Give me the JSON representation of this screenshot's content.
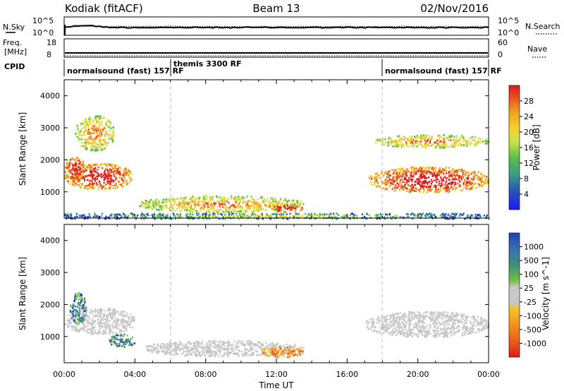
{
  "header": {
    "radar": "Kodiak (fitACF)",
    "beam": "Beam 13",
    "date": "02/Nov/2016"
  },
  "noise_panel": {
    "left_label": "N.Sky",
    "right_label": "N.Search",
    "left_ticks": [
      "10^5",
      "10^0"
    ],
    "right_ticks": [
      "10^5",
      "10^0"
    ]
  },
  "freq_panel": {
    "left_label_1": "Freq.",
    "left_label_2": "[MHz]",
    "right_label": "Nave",
    "left_ticks": [
      "18",
      "8"
    ],
    "right_ticks": [
      "60",
      "0"
    ]
  },
  "cpid_panel": {
    "label": "CPID",
    "segments": [
      {
        "label": "normalsound (fast) 157 RF",
        "start_h": 0,
        "end_h": 6
      },
      {
        "label": "themis 3300 RF",
        "start_h": 6,
        "end_h": 18
      },
      {
        "label": "normalsound (fast) 157 RF",
        "start_h": 18,
        "end_h": 24
      }
    ]
  },
  "time_axis": {
    "label": "Time UT",
    "ticks": [
      "00:00",
      "04:00",
      "08:00",
      "12:00",
      "16:00",
      "20:00",
      "00:00"
    ]
  },
  "chart_data": [
    {
      "type": "heatmap",
      "panel": "power",
      "ylabel": "Slant Range [km]",
      "xlim_hours": [
        0,
        24
      ],
      "ylim_km": [
        180,
        4500
      ],
      "yticks": [
        1000,
        2000,
        3000,
        4000
      ],
      "colorbar": {
        "label": "Power [dB]",
        "ticks": [
          "4",
          "8",
          "12",
          "16",
          "20",
          "24",
          "28"
        ],
        "colors": [
          "#1a1aff",
          "#2a4fb8",
          "#3b9a86",
          "#5cc046",
          "#cfe24a",
          "#f4d12e",
          "#f0a21e",
          "#e8541e",
          "#e01a1a"
        ]
      },
      "regions": [
        {
          "t0": 0.0,
          "t1": 3.9,
          "r0": 1100,
          "r1": 1900,
          "value": "high"
        },
        {
          "t0": 0.0,
          "t1": 1.2,
          "r0": 1400,
          "r1": 2100,
          "value": "high"
        },
        {
          "t0": 0.6,
          "t1": 2.8,
          "r0": 2300,
          "r1": 3400,
          "value": "mid"
        },
        {
          "t0": 4.2,
          "t1": 13.5,
          "r0": 380,
          "r1": 900,
          "value": "mid"
        },
        {
          "t0": 11.5,
          "t1": 13.5,
          "r0": 380,
          "r1": 650,
          "value": "high"
        },
        {
          "t0": 17.2,
          "t1": 24.0,
          "r0": 1000,
          "r1": 1800,
          "value": "high"
        },
        {
          "t0": 17.5,
          "t1": 24.0,
          "r0": 2400,
          "r1": 2800,
          "value": "mid"
        },
        {
          "t0": 0.0,
          "t1": 24.0,
          "r0": 180,
          "r1": 350,
          "value": "low"
        }
      ]
    },
    {
      "type": "heatmap",
      "panel": "velocity",
      "ylabel": "Slant Range [km]",
      "xlim_hours": [
        0,
        24
      ],
      "ylim_km": [
        180,
        4500
      ],
      "yticks": [
        1000,
        2000,
        3000,
        4000
      ],
      "colorbar": {
        "label": "Velocity [m s^-1]",
        "ticks": [
          "1000",
          "500",
          "100",
          "25",
          "-25",
          "-100",
          "-500",
          "-1000"
        ],
        "colors": [
          "#2040b0",
          "#3a6fb0",
          "#3f8f7a",
          "#6fc040",
          "#c8c8c8",
          "#f4c020",
          "#f0901e",
          "#e85a1e",
          "#e01a1a"
        ]
      },
      "regions": [
        {
          "t0": 0.0,
          "t1": 4.0,
          "r0": 1100,
          "r1": 1900,
          "value": "ground"
        },
        {
          "t0": 0.3,
          "t1": 1.2,
          "r0": 1400,
          "r1": 2400,
          "value": "positive"
        },
        {
          "t0": 2.5,
          "t1": 4.0,
          "r0": 700,
          "r1": 1100,
          "value": "positive"
        },
        {
          "t0": 4.5,
          "t1": 13.5,
          "r0": 400,
          "r1": 900,
          "value": "ground"
        },
        {
          "t0": 11.0,
          "t1": 13.5,
          "r0": 380,
          "r1": 700,
          "value": "negative"
        },
        {
          "t0": 17.0,
          "t1": 24.0,
          "r0": 1000,
          "r1": 1800,
          "value": "ground"
        }
      ]
    }
  ]
}
